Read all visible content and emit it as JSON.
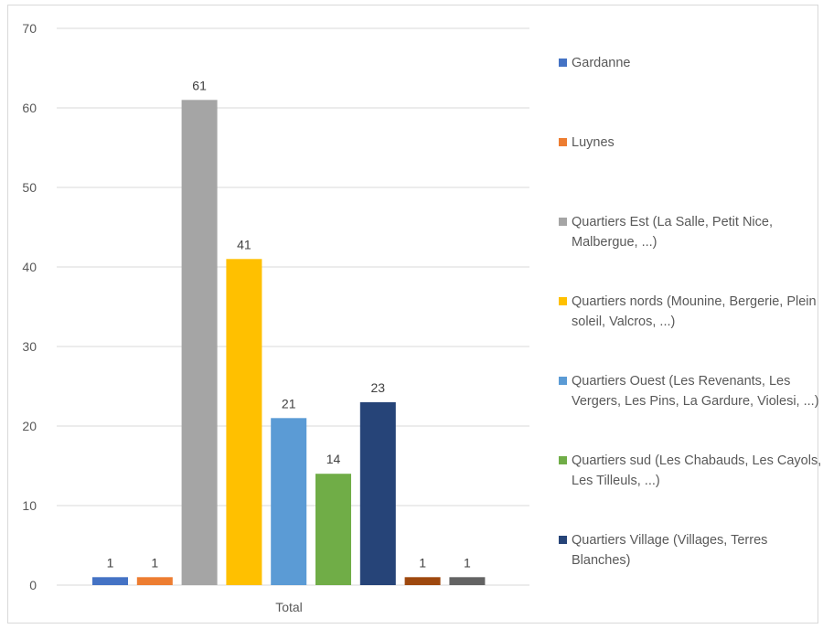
{
  "chart_data": {
    "type": "bar",
    "categories": [
      "Total"
    ],
    "ylim": [
      0,
      70
    ],
    "yticks": [
      0,
      10,
      20,
      30,
      40,
      50,
      60,
      70
    ],
    "grid": true,
    "legend_position": "right",
    "series": [
      {
        "name": "Gardanne",
        "values": [
          1
        ],
        "color": "#4472c4",
        "label": "1"
      },
      {
        "name": "Luynes",
        "values": [
          1
        ],
        "color": "#ed7d31",
        "label": "1"
      },
      {
        "name": "Quartiers Est (La Salle, Petit Nice, Malbergue, ...)",
        "values": [
          61
        ],
        "color": "#a5a5a5",
        "label": "61"
      },
      {
        "name": "Quartiers nords (Mounine, Bergerie, Plein soleil, Valcros, ...)",
        "values": [
          41
        ],
        "color": "#ffc000",
        "label": "41"
      },
      {
        "name": "Quartiers Ouest (Les Revenants, Les Vergers, Les Pins, La Gardure, Violesi, ...)",
        "values": [
          21
        ],
        "color": "#5b9bd5",
        "label": "21"
      },
      {
        "name": "Quartiers sud (Les Chabauds, Les Cayols, Les Tilleuls, ...)",
        "values": [
          14
        ],
        "color": "#70ad47",
        "label": "14"
      },
      {
        "name": "Quartiers Village (Villages, Terres Blanches)",
        "values": [
          23
        ],
        "color": "#264478",
        "label": "23"
      },
      {
        "name": "",
        "values": [
          1
        ],
        "color": "#9e480e",
        "label": "1"
      },
      {
        "name": "",
        "values": [
          1
        ],
        "color": "#636363",
        "label": "1"
      }
    ]
  }
}
